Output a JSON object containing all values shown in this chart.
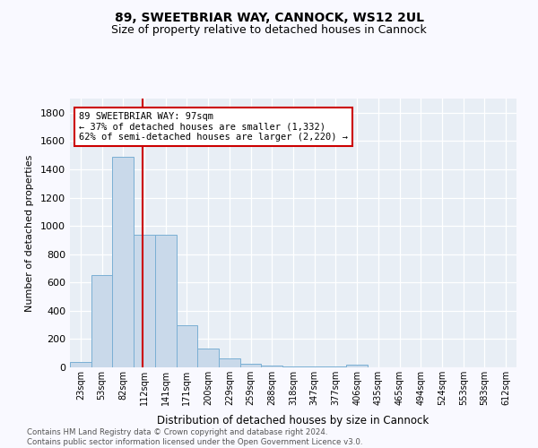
{
  "title1": "89, SWEETBRIAR WAY, CANNOCK, WS12 2UL",
  "title2": "Size of property relative to detached houses in Cannock",
  "xlabel": "Distribution of detached houses by size in Cannock",
  "ylabel": "Number of detached properties",
  "bar_color": "#c9d9ea",
  "bar_edge_color": "#7aafd4",
  "background_color": "#e8eef5",
  "grid_color": "#ffffff",
  "bin_labels": [
    "23sqm",
    "53sqm",
    "82sqm",
    "112sqm",
    "141sqm",
    "171sqm",
    "200sqm",
    "229sqm",
    "259sqm",
    "288sqm",
    "318sqm",
    "347sqm",
    "377sqm",
    "406sqm",
    "435sqm",
    "465sqm",
    "494sqm",
    "524sqm",
    "553sqm",
    "583sqm",
    "612sqm"
  ],
  "bar_heights": [
    35,
    650,
    1490,
    935,
    935,
    295,
    130,
    65,
    25,
    10,
    5,
    5,
    5,
    20,
    0,
    0,
    0,
    0,
    0,
    0,
    0
  ],
  "property_line_x": 2.935,
  "annotation_text": "89 SWEETBRIAR WAY: 97sqm\n← 37% of detached houses are smaller (1,332)\n62% of semi-detached houses are larger (2,220) →",
  "annotation_box_color": "#ffffff",
  "annotation_box_edge": "#cc0000",
  "red_line_color": "#cc0000",
  "footer_text": "Contains HM Land Registry data © Crown copyright and database right 2024.\nContains public sector information licensed under the Open Government Licence v3.0.",
  "ylim": [
    0,
    1900
  ],
  "yticks": [
    0,
    200,
    400,
    600,
    800,
    1000,
    1200,
    1400,
    1600,
    1800
  ],
  "fig_bg": "#f9f9ff"
}
